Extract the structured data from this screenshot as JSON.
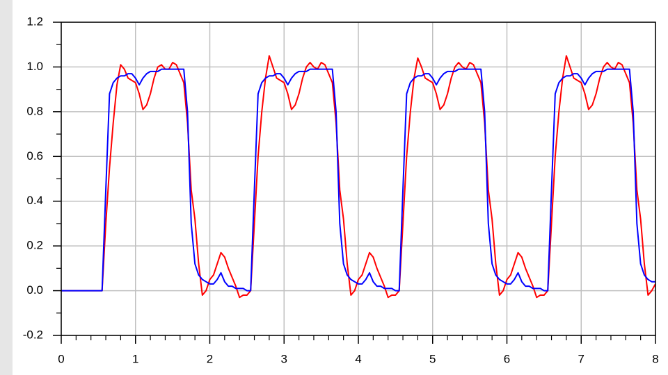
{
  "chart_data": {
    "type": "line",
    "x": [
      0,
      0.05,
      0.1,
      0.15,
      0.2,
      0.25,
      0.3,
      0.35,
      0.4,
      0.45,
      0.5,
      0.55,
      0.6,
      0.65,
      0.7,
      0.75,
      0.8,
      0.85,
      0.9,
      0.95,
      1,
      1.05,
      1.1,
      1.15,
      1.2,
      1.25,
      1.3,
      1.35,
      1.4,
      1.45,
      1.5,
      1.55,
      1.6,
      1.65,
      1.7,
      1.75,
      1.8,
      1.85,
      1.9,
      1.95,
      2,
      2.05,
      2.1,
      2.15,
      2.2,
      2.25,
      2.3,
      2.35,
      2.4,
      2.45,
      2.5,
      2.55,
      2.6,
      2.65,
      2.7,
      2.75,
      2.8,
      2.85,
      2.9,
      2.95,
      3,
      3.05,
      3.1,
      3.15,
      3.2,
      3.25,
      3.3,
      3.35,
      3.4,
      3.45,
      3.5,
      3.55,
      3.6,
      3.65,
      3.7,
      3.75,
      3.8,
      3.85,
      3.9,
      3.95,
      4,
      4.05,
      4.1,
      4.15,
      4.2,
      4.25,
      4.3,
      4.35,
      4.4,
      4.45,
      4.5,
      4.55,
      4.6,
      4.65,
      4.7,
      4.75,
      4.8,
      4.85,
      4.9,
      4.95,
      5,
      5.05,
      5.1,
      5.15,
      5.2,
      5.25,
      5.3,
      5.35,
      5.4,
      5.45,
      5.5,
      5.55,
      5.6,
      5.65,
      5.7,
      5.75,
      5.8,
      5.85,
      5.9,
      5.95,
      6,
      6.05,
      6.1,
      6.15,
      6.2,
      6.25,
      6.3,
      6.35,
      6.4,
      6.45,
      6.5,
      6.55,
      6.6,
      6.65,
      6.7,
      6.75,
      6.8,
      6.85,
      6.9,
      6.95,
      7,
      7.05,
      7.1,
      7.15,
      7.2,
      7.25,
      7.3,
      7.35,
      7.4,
      7.45,
      7.5,
      7.55,
      7.6,
      7.65,
      7.7,
      7.75,
      7.8,
      7.85,
      7.9,
      7.95,
      8
    ],
    "series": [
      {
        "color": "#ff0000",
        "values": [
          0,
          0,
          0,
          0,
          0,
          0,
          0,
          0,
          0,
          0,
          0,
          0,
          0.3,
          0.55,
          0.75,
          0.92,
          1.01,
          0.99,
          0.95,
          0.94,
          0.93,
          0.88,
          0.81,
          0.83,
          0.88,
          0.95,
          1,
          1.01,
          0.99,
          0.99,
          1.02,
          1.01,
          0.97,
          0.93,
          0.75,
          0.45,
          0.32,
          0.12,
          -0.02,
          0,
          0.05,
          0.07,
          0.12,
          0.17,
          0.15,
          0.1,
          0.06,
          0.02,
          -0.03,
          -0.02,
          -0.02,
          0,
          0.3,
          0.6,
          0.8,
          0.95,
          1.05,
          1.0,
          0.95,
          0.94,
          0.93,
          0.88,
          0.81,
          0.83,
          0.88,
          0.95,
          1,
          1.02,
          1.0,
          0.99,
          1.02,
          1.01,
          0.97,
          0.93,
          0.75,
          0.45,
          0.32,
          0.12,
          -0.02,
          0,
          0.05,
          0.07,
          0.12,
          0.17,
          0.15,
          0.1,
          0.06,
          0.02,
          -0.03,
          -0.02,
          -0.02,
          0,
          0.3,
          0.6,
          0.8,
          0.95,
          1.04,
          1.0,
          0.95,
          0.94,
          0.93,
          0.88,
          0.81,
          0.83,
          0.88,
          0.95,
          1,
          1.02,
          1.0,
          0.99,
          1.02,
          1.01,
          0.97,
          0.93,
          0.75,
          0.45,
          0.32,
          0.12,
          -0.02,
          0,
          0.05,
          0.07,
          0.12,
          0.17,
          0.15,
          0.1,
          0.06,
          0.02,
          -0.03,
          -0.02,
          -0.02,
          0,
          0.3,
          0.6,
          0.8,
          0.95,
          1.05,
          1.0,
          0.95,
          0.94,
          0.93,
          0.88,
          0.81,
          0.83,
          0.88,
          0.95,
          1,
          1.02,
          1.0,
          0.99,
          1.02,
          1.01,
          0.97,
          0.93,
          0.75,
          0.45,
          0.32,
          0.12,
          -0.02,
          0,
          0.03
        ]
      },
      {
        "color": "#0000ff",
        "values": [
          0,
          0,
          0,
          0,
          0,
          0,
          0,
          0,
          0,
          0,
          0,
          0,
          0.45,
          0.88,
          0.93,
          0.95,
          0.96,
          0.96,
          0.97,
          0.97,
          0.95,
          0.92,
          0.95,
          0.97,
          0.98,
          0.98,
          0.98,
          0.99,
          0.99,
          0.99,
          0.99,
          0.99,
          0.99,
          0.99,
          0.8,
          0.3,
          0.12,
          0.07,
          0.05,
          0.04,
          0.03,
          0.03,
          0.05,
          0.08,
          0.04,
          0.02,
          0.02,
          0.01,
          0.01,
          0.01,
          0,
          0,
          0.45,
          0.88,
          0.93,
          0.95,
          0.96,
          0.96,
          0.97,
          0.97,
          0.95,
          0.92,
          0.95,
          0.97,
          0.98,
          0.98,
          0.98,
          0.99,
          0.99,
          0.99,
          0.99,
          0.99,
          0.99,
          0.99,
          0.8,
          0.3,
          0.12,
          0.07,
          0.05,
          0.04,
          0.03,
          0.03,
          0.05,
          0.08,
          0.04,
          0.02,
          0.02,
          0.01,
          0.01,
          0.01,
          0,
          0,
          0.45,
          0.88,
          0.93,
          0.95,
          0.96,
          0.96,
          0.97,
          0.97,
          0.95,
          0.92,
          0.95,
          0.97,
          0.98,
          0.98,
          0.98,
          0.99,
          0.99,
          0.99,
          0.99,
          0.99,
          0.99,
          0.99,
          0.8,
          0.3,
          0.12,
          0.07,
          0.05,
          0.04,
          0.03,
          0.03,
          0.05,
          0.08,
          0.04,
          0.02,
          0.02,
          0.01,
          0.01,
          0.01,
          0,
          0,
          0.45,
          0.88,
          0.93,
          0.95,
          0.96,
          0.96,
          0.97,
          0.97,
          0.95,
          0.92,
          0.95,
          0.97,
          0.98,
          0.98,
          0.98,
          0.99,
          0.99,
          0.99,
          0.99,
          0.99,
          0.99,
          0.99,
          0.8,
          0.3,
          0.12,
          0.07,
          0.05,
          0.04,
          0.04
        ]
      }
    ],
    "xlim": [
      0,
      8
    ],
    "xticks": [
      0,
      1,
      2,
      3,
      4,
      5,
      6,
      7,
      8
    ],
    "ylim": [
      -0.2,
      1.2
    ],
    "yticks": [
      -0.2,
      {
        "value": 0,
        "label": "0.0"
      },
      0.2,
      0.4,
      0.6,
      0.8,
      {
        "value": 1,
        "label": "1.0"
      },
      1.2
    ],
    "grid": true
  }
}
